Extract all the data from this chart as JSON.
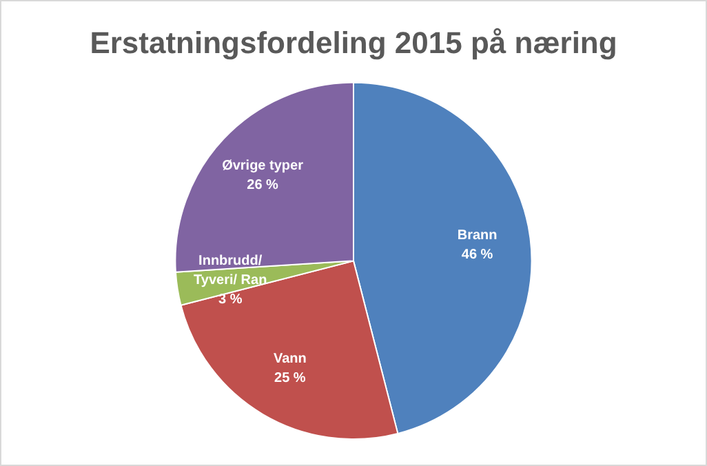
{
  "chart_data": {
    "type": "pie",
    "title": "Erstatningsfordeling 2015 på næring",
    "categories": [
      "Brann",
      "Vann",
      "Innbrudd/ Tyveri/ Ran",
      "Øvrige typer"
    ],
    "values": [
      46,
      25,
      3,
      26
    ],
    "value_labels": [
      "46 %",
      "25 %",
      "3 %",
      "26 %"
    ],
    "colors": [
      "#4f81bd",
      "#c0504d",
      "#9bbb59",
      "#8064a2"
    ],
    "legend": false
  }
}
